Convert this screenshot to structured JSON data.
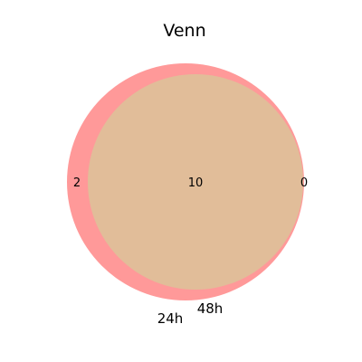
{
  "title": "Venn",
  "sets": [
    {
      "name": "24h",
      "color": "#ff9999"
    },
    {
      "name": "48h",
      "color": "#e1bf99"
    }
  ],
  "regions": {
    "only_24h": "2",
    "both": "10",
    "only_48h": "0"
  },
  "colors": {
    "set_a": "#ff9999",
    "intersection": "#e1bd99"
  }
}
